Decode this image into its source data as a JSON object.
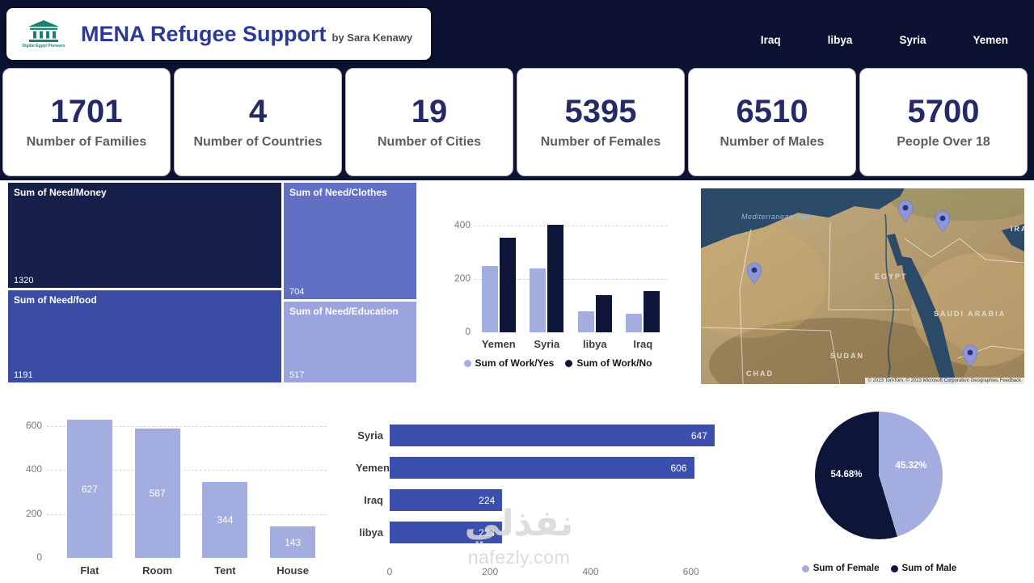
{
  "header": {
    "title": "MENA Refugee Support",
    "byline": "by Sara Kenawy",
    "logo_caption": "Digital Egypt Pioneers",
    "countries": [
      "Iraq",
      "libya",
      "Syria",
      "Yemen"
    ]
  },
  "kpis": [
    {
      "value": "1701",
      "label": "Number of Families"
    },
    {
      "value": "4",
      "label": "Number of Countries"
    },
    {
      "value": "19",
      "label": "Number of Cities"
    },
    {
      "value": "5395",
      "label": "Number of Females"
    },
    {
      "value": "6510",
      "label": "Number of Males"
    },
    {
      "value": "5700",
      "label": "People Over 18"
    }
  ],
  "chart_data": [
    {
      "id": "need-treemap",
      "type": "treemap",
      "items": [
        {
          "label": "Sum of Need/Money",
          "value": 1320,
          "color": "#16204b"
        },
        {
          "label": "Sum of Need/food",
          "value": 1191,
          "color": "#3a4ca3"
        },
        {
          "label": "Sum of Need/Clothes",
          "value": 704,
          "color": "#6270c4"
        },
        {
          "label": "Sum of Need/Education",
          "value": 517,
          "color": "#9aa4df"
        }
      ]
    },
    {
      "id": "work-chart",
      "type": "bar",
      "categories": [
        "Yemen",
        "Syria",
        "libya",
        "Iraq"
      ],
      "series": [
        {
          "name": "Sum of Work/Yes",
          "color": "#a4addf",
          "values": [
            250,
            240,
            80,
            70
          ]
        },
        {
          "name": "Sum of Work/No",
          "color": "#0d1538",
          "values": [
            355,
            405,
            140,
            155
          ]
        }
      ],
      "ylim": [
        0,
        450
      ],
      "yticks": [
        0,
        200,
        400
      ],
      "legend_position": "bottom"
    },
    {
      "id": "housing-chart",
      "type": "bar",
      "categories": [
        "Flat",
        "Room",
        "Tent",
        "House"
      ],
      "values": [
        627,
        587,
        344,
        143
      ],
      "color": "#a4addf",
      "ylim": [
        0,
        650
      ],
      "yticks": [
        0,
        200,
        400,
        600
      ]
    },
    {
      "id": "country-chart",
      "type": "bar",
      "orientation": "horizontal",
      "categories": [
        "Syria",
        "Yemen",
        "Iraq",
        "libya"
      ],
      "values": [
        647,
        606,
        224,
        224
      ],
      "color": "#3c4fae",
      "xlim": [
        0,
        660
      ],
      "xticks": [
        0,
        200,
        400,
        600
      ]
    },
    {
      "id": "gender-pie",
      "type": "pie",
      "slices": [
        {
          "label": "Sum of Female",
          "pct": 45.32,
          "pct_label": "45.32%",
          "color": "#a4addf"
        },
        {
          "label": "Sum of Male",
          "pct": 54.68,
          "pct_label": "54.68%",
          "color": "#0d1538"
        }
      ],
      "legend_position": "bottom"
    }
  ],
  "map": {
    "labels": {
      "sea": "Mediterranean Sea",
      "egypt": "EGYPT",
      "saudi": "SAUDI ARABIA",
      "sudan": "SUDAN",
      "chad": "CHAD",
      "iran_clipped": "IRA"
    },
    "attribution": "© 2023 TomTom, © 2023 Microsoft Corporation  Geographies Feedback"
  },
  "watermark": {
    "arabic": "نفذلي",
    "site": "nafezly.com"
  },
  "colors": {
    "page_background": "#ffffff",
    "header_background": "#0c1231",
    "accent_light": "#a4addf",
    "accent_dark": "#0d1538",
    "bar_blue": "#3c4fae",
    "kpi_number": "#232a65",
    "title_indigo": "#2c3a96"
  }
}
